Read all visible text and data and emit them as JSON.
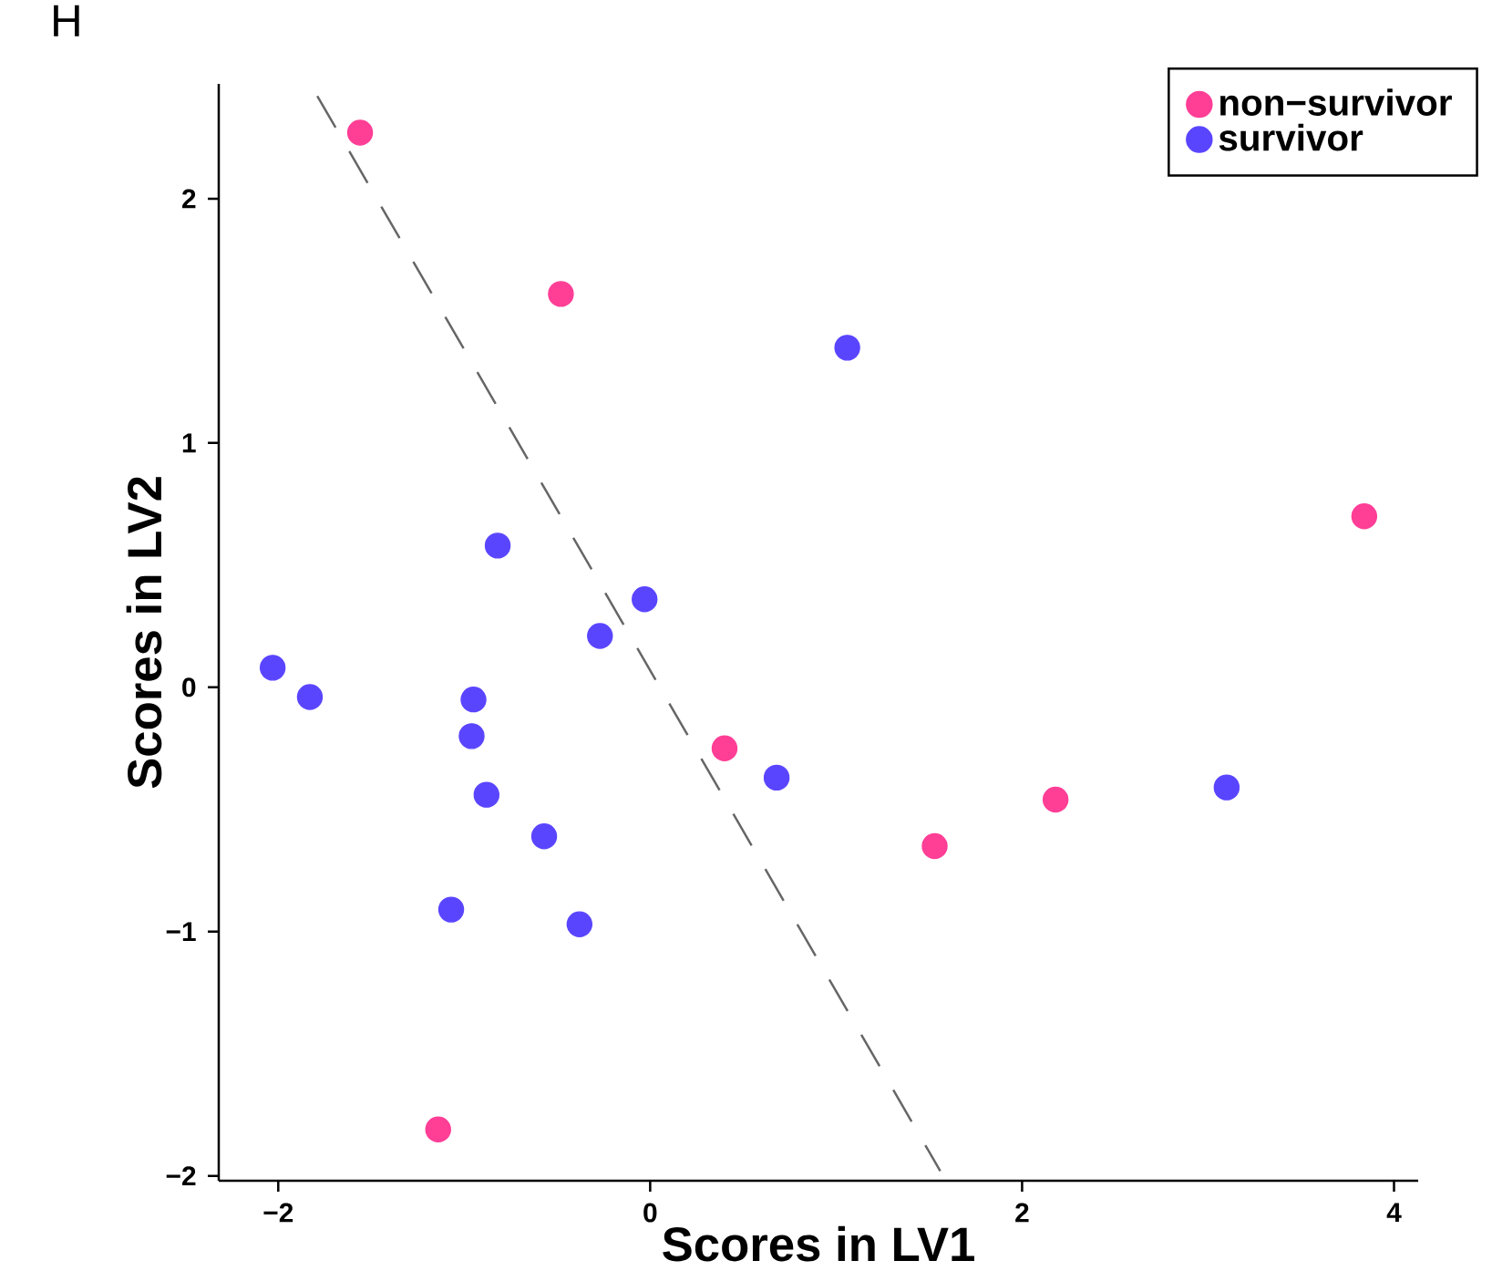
{
  "chart_data": {
    "type": "scatter",
    "title": "H",
    "xlabel": "Scores in LV1",
    "ylabel": "Scores in LV2",
    "xlim": [
      -2.32,
      4.13
    ],
    "ylim": [
      -2.02,
      2.47
    ],
    "xticks": [
      {
        "value": -2,
        "label": "−2"
      },
      0,
      2,
      4
    ],
    "yticks": [
      {
        "value": -2,
        "label": "−2"
      },
      {
        "value": -1,
        "label": "−1"
      },
      0,
      1,
      2
    ],
    "legend": "top right",
    "series": [
      {
        "name": "non−survivor",
        "color": "#ff3e96",
        "marker": "circle",
        "x": [
          -1.56,
          -0.48,
          0.4,
          1.53,
          2.18,
          3.84,
          -1.14
        ],
        "values": [
          2.27,
          1.61,
          -0.25,
          -0.65,
          -0.46,
          0.7,
          -1.81
        ]
      },
      {
        "name": "survivor",
        "color": "#5a45ff",
        "marker": "circle",
        "x": [
          1.06,
          -0.82,
          -0.03,
          -0.27,
          -2.03,
          -1.83,
          -0.95,
          -0.96,
          -0.88,
          -0.57,
          -1.07,
          -0.38,
          0.68,
          3.1
        ],
        "values": [
          1.39,
          0.58,
          0.36,
          0.21,
          0.08,
          -0.04,
          -0.05,
          -0.2,
          -0.44,
          -0.61,
          -0.91,
          -0.97,
          -0.37,
          -0.41
        ]
      },
      {
        "type": "line",
        "color": "#666666",
        "line_style": "dashed",
        "marker": "none",
        "x": [
          -1.79,
          1.56
        ],
        "values": [
          2.42,
          -1.98
        ]
      }
    ]
  }
}
